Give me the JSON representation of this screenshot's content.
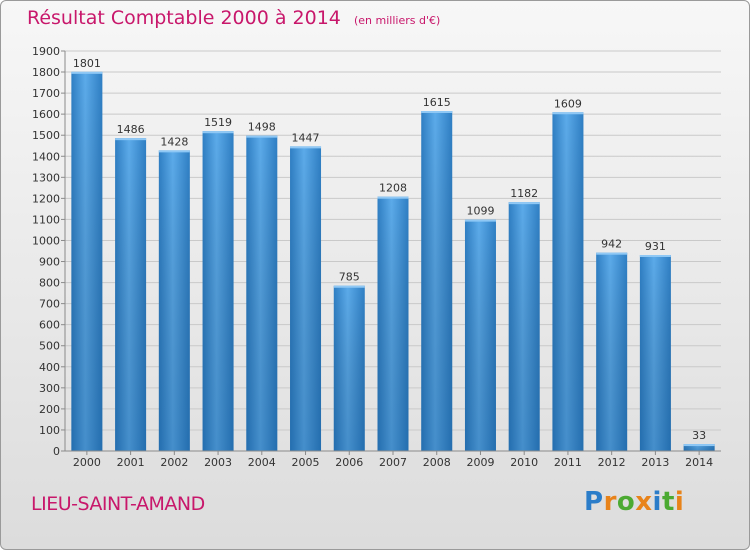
{
  "chart_data": {
    "type": "bar",
    "title": "Résultat Comptable 2000 à 2014",
    "unit_note": "(en milliers d'€)",
    "categories": [
      "2000",
      "2001",
      "2002",
      "2003",
      "2004",
      "2005",
      "2006",
      "2007",
      "2008",
      "2009",
      "2010",
      "2011",
      "2012",
      "2013",
      "2014"
    ],
    "values": [
      1801,
      1486,
      1428,
      1519,
      1498,
      1447,
      785,
      1208,
      1615,
      1099,
      1182,
      1609,
      942,
      931,
      33
    ],
    "ylim": [
      0,
      1900
    ],
    "yticks": [
      0,
      100,
      200,
      300,
      400,
      500,
      600,
      700,
      800,
      900,
      1000,
      1100,
      1200,
      1300,
      1400,
      1500,
      1600,
      1700,
      1800,
      1900
    ],
    "grid": true,
    "bar_color": "#3a8fd6",
    "title_color": "#c8176b"
  },
  "place_name": "LIEU-SAINT-AMAND",
  "logo": {
    "text": "Proxiti",
    "letter_colors": [
      "#2b7dc9",
      "#e8831a",
      "#4caa32",
      "#e8831a",
      "#2b7dc9",
      "#4caa32",
      "#e8831a"
    ]
  }
}
